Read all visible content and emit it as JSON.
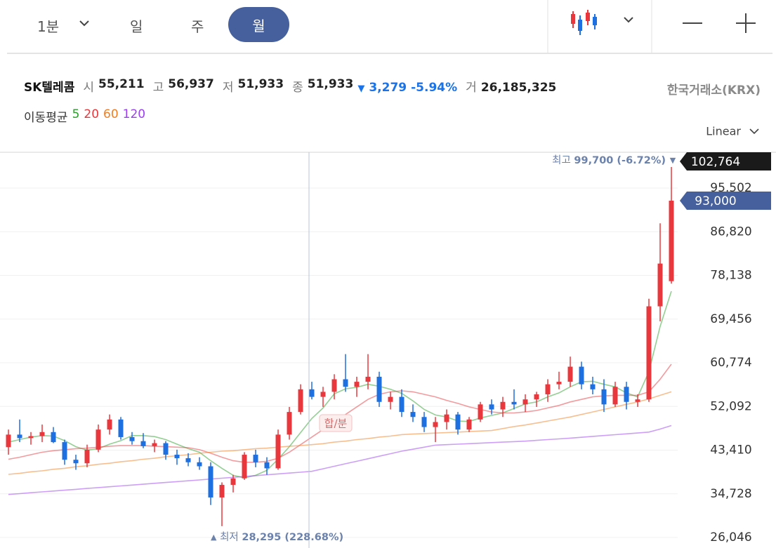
{
  "toolbar": {
    "interval": "1분",
    "tabs": [
      "일",
      "주",
      "월"
    ],
    "selected_tab": 2
  },
  "quote": {
    "name": "SK텔레콤",
    "fields": [
      {
        "label": "시",
        "value": "55,211"
      },
      {
        "label": "고",
        "value": "56,937"
      },
      {
        "label": "저",
        "value": "51,933"
      },
      {
        "label": "종",
        "value": "51,933"
      }
    ],
    "change_arrow": "▼",
    "change": "3,279",
    "change_pct": "-5.94%",
    "volume_label": "거",
    "volume": "26,185,325",
    "exchange": "한국거래소(KRX)"
  },
  "chart_data": {
    "type": "candlestick",
    "legend_title": "이동평균",
    "scale_label": "Linear",
    "log": false,
    "grid": true,
    "up_color": "#e8383d",
    "down_color": "#1e6fe0",
    "candles": {
      "open": [
        44000,
        46500,
        45800,
        46200,
        47000,
        45000,
        41500,
        40800,
        43500,
        47500,
        49500,
        46000,
        45200,
        44200,
        44800,
        42500,
        41800,
        41000,
        40200,
        34000,
        36500,
        37800,
        42500,
        41000,
        39800,
        46500,
        51000,
        55500,
        54000,
        55000,
        57500,
        56000,
        57000,
        58000,
        53000,
        54000,
        51000,
        50000,
        48000,
        49000,
        50500,
        47500,
        49500,
        52500,
        51500,
        53000,
        52500,
        53500,
        54500,
        56500,
        57000,
        60000,
        56500,
        55500,
        52500,
        56000,
        53000,
        53500,
        72000,
        77000
      ],
      "high": [
        47500,
        49500,
        47000,
        48500,
        48000,
        45500,
        42500,
        44500,
        48500,
        50500,
        50000,
        47000,
        46800,
        45500,
        45200,
        43500,
        42800,
        42000,
        41000,
        37000,
        38500,
        43000,
        43500,
        42000,
        47500,
        52000,
        56500,
        57000,
        56000,
        58500,
        62500,
        58000,
        62500,
        59000,
        55000,
        55500,
        52500,
        51000,
        50000,
        51500,
        51000,
        50000,
        53000,
        53500,
        54000,
        55500,
        54500,
        55000,
        57500,
        59000,
        62000,
        61000,
        58000,
        57500,
        57000,
        57000,
        54500,
        73500,
        88500,
        99700
      ],
      "low": [
        42500,
        45000,
        44500,
        45000,
        44800,
        40500,
        39500,
        40000,
        43000,
        46500,
        45500,
        44500,
        43800,
        43000,
        41500,
        40500,
        40200,
        39500,
        32500,
        28295,
        35000,
        37500,
        40000,
        38500,
        39500,
        45500,
        50500,
        53500,
        52000,
        53500,
        55000,
        54000,
        55500,
        52000,
        51500,
        50000,
        49000,
        47000,
        45000,
        47500,
        46500,
        47000,
        49000,
        50500,
        50000,
        51500,
        51000,
        52000,
        53000,
        55500,
        56000,
        55500,
        54500,
        51000,
        52000,
        51500,
        52000,
        53000,
        69000,
        76500
      ],
      "close": [
        46500,
        45800,
        46200,
        47000,
        45000,
        41500,
        40800,
        43500,
        47500,
        49500,
        46000,
        45200,
        44200,
        44800,
        42500,
        41800,
        41000,
        40200,
        34000,
        36500,
        37800,
        42500,
        41000,
        39800,
        46500,
        51000,
        55500,
        54000,
        55000,
        57500,
        56000,
        57000,
        58000,
        53000,
        54000,
        51000,
        50000,
        48000,
        49000,
        50500,
        47500,
        49500,
        52500,
        51500,
        53000,
        52500,
        53500,
        54500,
        56500,
        57000,
        60000,
        56500,
        55500,
        52500,
        56000,
        53000,
        53500,
        72000,
        80500,
        93000
      ]
    },
    "series": [
      {
        "name": "5",
        "color": "#2aa02a",
        "values": [
          45000,
          45500,
          46000,
          46300,
          46200,
          45300,
          44100,
          43400,
          43700,
          44600,
          45300,
          46300,
          46300,
          46100,
          45500,
          44600,
          43700,
          43000,
          41300,
          39800,
          38400,
          37900,
          38400,
          39400,
          41600,
          44100,
          46900,
          49700,
          51800,
          54600,
          55600,
          55900,
          56500,
          56100,
          55500,
          54700,
          53200,
          51500,
          50400,
          50000,
          49200,
          49100,
          49800,
          50300,
          50800,
          51700,
          52600,
          53000,
          54000,
          54800,
          56000,
          57000,
          57100,
          56500,
          56000,
          54800,
          54000,
          59000,
          68000,
          75000
        ]
      },
      {
        "name": "20",
        "color": "#e8383d",
        "values": [
          41600,
          42000,
          42500,
          43000,
          43300,
          43500,
          43700,
          43800,
          44000,
          44200,
          44300,
          44300,
          44300,
          44200,
          44100,
          44000,
          43900,
          43500,
          42800,
          42000,
          41300,
          41000,
          41000,
          41200,
          41800,
          43000,
          44500,
          46000,
          47500,
          49000,
          50500,
          52000,
          53500,
          54500,
          55000,
          55200,
          55000,
          54500,
          54000,
          53300,
          52700,
          52000,
          51500,
          51000,
          50800,
          50800,
          51000,
          51300,
          51800,
          52300,
          53000,
          53500,
          54000,
          54200,
          54300,
          54300,
          54300,
          55000,
          57500,
          60500
        ]
      },
      {
        "name": "60",
        "color": "#f07f22",
        "values": [
          38600,
          38800,
          39100,
          39300,
          39600,
          39800,
          40100,
          40300,
          40600,
          40800,
          41100,
          41300,
          41600,
          41800,
          42100,
          42300,
          42500,
          42800,
          43000,
          43200,
          43300,
          43500,
          43700,
          43800,
          44000,
          44200,
          44300,
          44500,
          44700,
          45000,
          45200,
          45500,
          45700,
          46000,
          46200,
          46500,
          46600,
          46700,
          46800,
          46900,
          47000,
          47100,
          47200,
          47300,
          47700,
          48100,
          48400,
          48800,
          49200,
          49600,
          50000,
          50500,
          51000,
          51500,
          52000,
          52500,
          53000,
          53600,
          54300,
          55000
        ]
      },
      {
        "name": "120",
        "color": "#9b3ff0",
        "values": [
          34600,
          34770,
          34940,
          35110,
          35280,
          35450,
          35620,
          35790,
          35960,
          36130,
          36300,
          36470,
          36640,
          36810,
          36980,
          37150,
          37320,
          37490,
          37660,
          37830,
          38000,
          38170,
          38340,
          38510,
          38680,
          38850,
          39020,
          39200,
          39700,
          40200,
          40700,
          41200,
          41700,
          42200,
          42700,
          43200,
          43600,
          44000,
          44400,
          44500,
          44600,
          44700,
          44800,
          44900,
          45000,
          45100,
          45200,
          45350,
          45500,
          45650,
          45800,
          45970,
          46140,
          46310,
          46480,
          46650,
          46820,
          47000,
          47600,
          48300
        ]
      }
    ],
    "ylim": [
      23954,
      102764
    ],
    "yticks": [
      {
        "value": 26046,
        "label": "26,046"
      },
      {
        "value": 34728,
        "label": "34,728"
      },
      {
        "value": 43410,
        "label": "43,410"
      },
      {
        "value": 52092,
        "label": "52,092"
      },
      {
        "value": 60774,
        "label": "60,774"
      },
      {
        "value": 69456,
        "label": "69,456"
      },
      {
        "value": 78138,
        "label": "78,138"
      },
      {
        "value": 86820,
        "label": "86,820"
      },
      {
        "value": 95502,
        "label": "95,502"
      }
    ],
    "price_tags": [
      {
        "value": 102764,
        "label": "102,764",
        "color": "#1a1a1a"
      },
      {
        "value": 93000,
        "label": "93,000",
        "color": "#45609c"
      }
    ],
    "annotations": {
      "high": {
        "marker": "▼",
        "label": "최고",
        "text": "99,700 (-6.72%)"
      },
      "low": {
        "marker": "▲",
        "label": "최저",
        "text": "28,295 (228.68%)"
      }
    },
    "crosshair": {
      "label": "합/분"
    }
  }
}
